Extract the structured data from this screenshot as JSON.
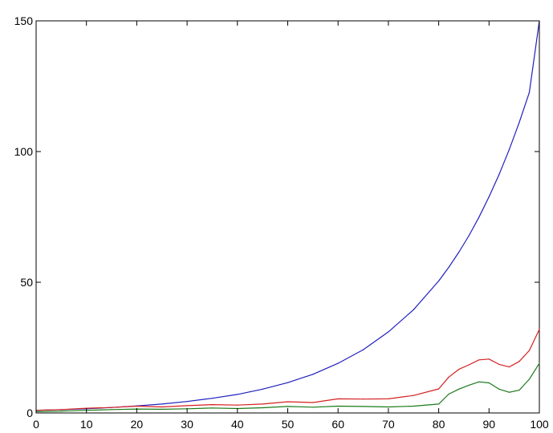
{
  "chart_data": {
    "type": "line",
    "title": "",
    "xlabel": "",
    "ylabel": "",
    "xlim": [
      0,
      100
    ],
    "ylim": [
      0,
      150
    ],
    "grid": false,
    "legend": "none",
    "x_ticks": [
      0,
      10,
      20,
      30,
      40,
      50,
      60,
      70,
      80,
      90,
      100
    ],
    "y_ticks": [
      0,
      50,
      100,
      150
    ],
    "x": [
      0,
      5,
      10,
      15,
      20,
      25,
      30,
      35,
      40,
      45,
      50,
      55,
      60,
      65,
      70,
      75,
      80,
      82,
      84,
      86,
      88,
      90,
      92,
      94,
      96,
      98,
      100
    ],
    "series": [
      {
        "color": "#1f1fbf",
        "values": [
          1,
          1.3,
          1.6,
          2.1,
          2.7,
          3.4,
          4.4,
          5.6,
          7.1,
          9.1,
          11.6,
          14.8,
          19,
          24.2,
          31,
          39.5,
          50.5,
          55.7,
          61.5,
          67.8,
          74.9,
          82.7,
          91.2,
          100.7,
          111.1,
          122.6,
          150
        ]
      },
      {
        "color": "#d42020",
        "values": [
          1,
          1.3,
          1.8,
          2.1,
          2.6,
          2.3,
          2.8,
          3.2,
          3,
          3.4,
          4.3,
          4,
          5.4,
          5.3,
          5.4,
          6.7,
          9.2,
          13.7,
          16.7,
          18.4,
          20.3,
          20.6,
          18.6,
          17.6,
          19.7,
          23.9,
          32
        ]
      },
      {
        "color": "#1a7a1a",
        "values": [
          0.5,
          0.7,
          1,
          1.3,
          1.5,
          1.4,
          1.6,
          1.9,
          1.7,
          2,
          2.5,
          2.2,
          2.6,
          2.5,
          2.3,
          2.6,
          3.4,
          7.2,
          9.1,
          10.6,
          11.9,
          11.5,
          9.1,
          7.9,
          8.7,
          12.9,
          19
        ]
      }
    ]
  }
}
